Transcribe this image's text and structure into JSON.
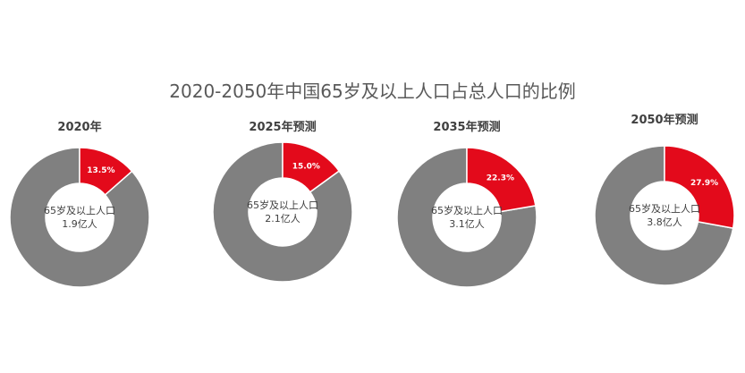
{
  "chart_data": {
    "type": "pie",
    "title": "2020-2050年中国65岁及以上人口占总人口的比例",
    "colors": {
      "highlight": "#E30A1B",
      "rest": "#808080"
    },
    "charts": [
      {
        "subtitle": "2020年",
        "value": 13.5,
        "value_label": "13.5%",
        "center_line1": "65岁及以上人口",
        "center_line2": "1.9亿人"
      },
      {
        "subtitle": "2025年预测",
        "value": 15.0,
        "value_label": "15.0%",
        "center_line1": "65岁及以上人口",
        "center_line2": "2.1亿人"
      },
      {
        "subtitle": "2035年预测",
        "value": 22.3,
        "value_label": "22.3%",
        "center_line1": "65岁及以上人口",
        "center_line2": "3.1亿人"
      },
      {
        "subtitle": "2050年预测",
        "value": 27.9,
        "value_label": "27.9%",
        "center_line1": "65岁及以上人口",
        "center_line2": "3.8亿人"
      }
    ]
  }
}
